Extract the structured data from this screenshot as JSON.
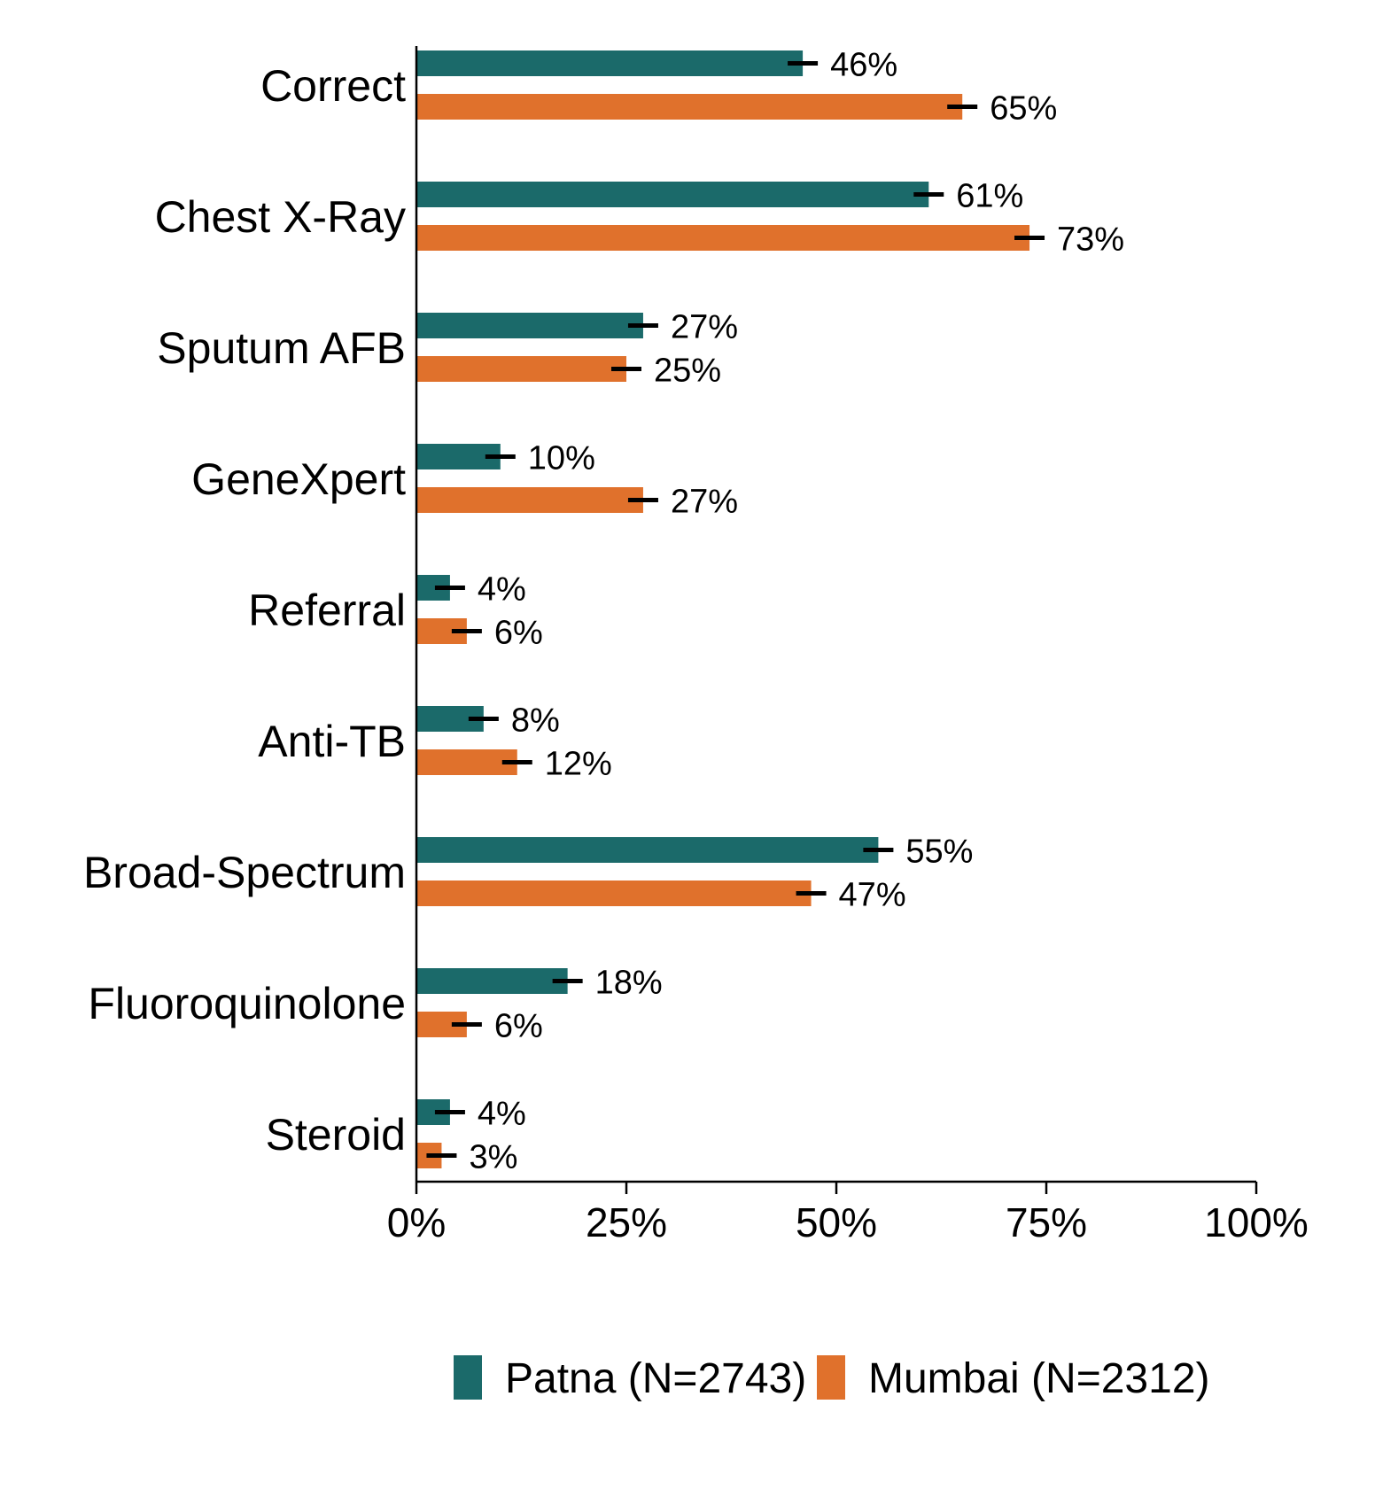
{
  "chart_data": {
    "type": "bar",
    "orientation": "horizontal",
    "categories": [
      "Correct",
      "Chest X-Ray",
      "Sputum AFB",
      "GeneXpert",
      "Referral",
      "Anti-TB",
      "Broad-Spectrum",
      "Fluoroquinolone",
      "Steroid"
    ],
    "series": [
      {
        "name": "Patna (N=2743)",
        "color": "#1b6a6a",
        "values": [
          46,
          61,
          27,
          10,
          4,
          8,
          55,
          18,
          4
        ],
        "labels": [
          "46%",
          "61%",
          "27%",
          "10%",
          "4%",
          "8%",
          "55%",
          "18%",
          "4%"
        ]
      },
      {
        "name": "Mumbai (N=2312)",
        "color": "#e0712c",
        "values": [
          65,
          73,
          25,
          27,
          6,
          12,
          47,
          6,
          3
        ],
        "labels": [
          "65%",
          "73%",
          "25%",
          "27%",
          "6%",
          "12%",
          "47%",
          "6%",
          "3%"
        ]
      }
    ],
    "error_bars": true,
    "xlim": [
      0,
      100
    ],
    "xticks": [
      0,
      25,
      50,
      75,
      100
    ],
    "xtick_labels": [
      "0%",
      "25%",
      "50%",
      "75%",
      "100%"
    ],
    "xlabel": "",
    "ylabel": "",
    "title": "",
    "grid": false,
    "legend_position": "bottom"
  }
}
